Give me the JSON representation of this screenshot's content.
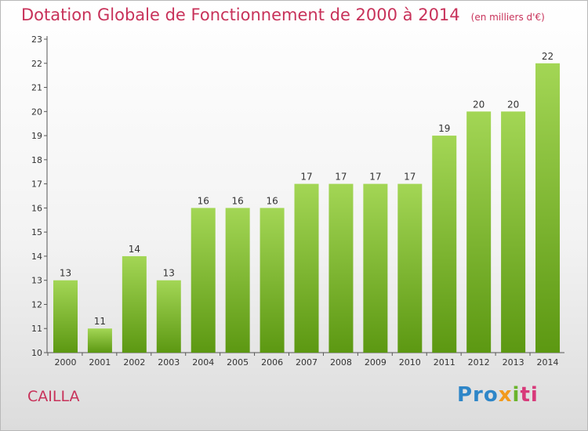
{
  "header": {
    "title": "Dotation Globale de Fonctionnement de 2000 à 2014",
    "unit": "(en milliers d'€)"
  },
  "footer": {
    "commune": "CAILLA",
    "logo_parts": [
      "Pro",
      "x",
      "i",
      "ti"
    ]
  },
  "colors": {
    "title": "#c8325a",
    "bar_light": "#9fd24f",
    "bar_dark": "#5e9a12"
  },
  "chart_data": {
    "type": "bar",
    "title": "Dotation Globale de Fonctionnement de 2000 à 2014",
    "categories": [
      "2000",
      "2001",
      "2002",
      "2003",
      "2004",
      "2005",
      "2006",
      "2007",
      "2008",
      "2009",
      "2010",
      "2011",
      "2012",
      "2013",
      "2014"
    ],
    "values": [
      13,
      11,
      14,
      13,
      16,
      16,
      16,
      17,
      17,
      17,
      17,
      19,
      20,
      20,
      22
    ],
    "ylim": [
      10,
      23
    ],
    "yticks": [
      10,
      11,
      12,
      13,
      14,
      15,
      16,
      17,
      18,
      19,
      20,
      21,
      22,
      23
    ],
    "grid": false,
    "legend": "none"
  }
}
